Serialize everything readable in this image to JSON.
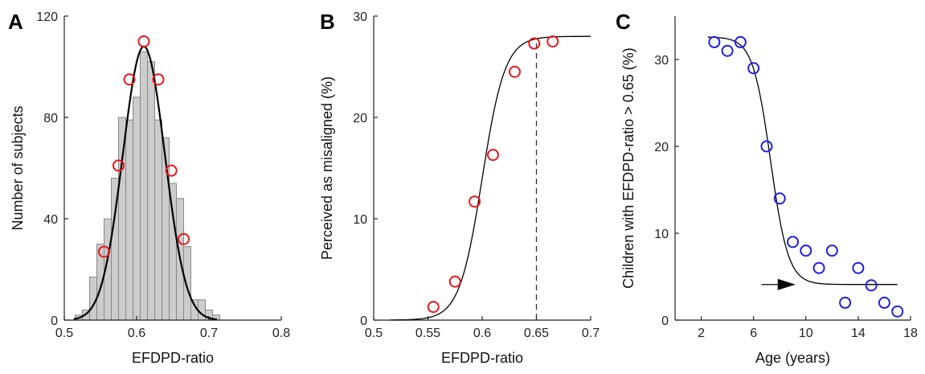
{
  "colors": {
    "axis": "#222222",
    "hist_fill": "#cccccc",
    "hist_edge": "#888888",
    "red_marker": "#e8161b",
    "blue_marker": "#1f1fe0",
    "curve": "#000000"
  },
  "chart_data": [
    {
      "panel": "A",
      "type": "bar",
      "xlabel": "EFDPD-ratio",
      "ylabel": "Number of subjects",
      "xlim": [
        0.5,
        0.8
      ],
      "ylim": [
        0,
        120
      ],
      "xticks": [
        0.5,
        0.6,
        0.7,
        0.8
      ],
      "xtick_labels": [
        "0.5",
        "0.6",
        "0.7",
        "0.8"
      ],
      "yticks": [
        0,
        40,
        80,
        120
      ],
      "ytick_labels": [
        "0",
        "40",
        "80",
        "120"
      ],
      "bin_width": 0.01,
      "bin_starts": [
        0.515,
        0.525,
        0.535,
        0.545,
        0.555,
        0.565,
        0.575,
        0.585,
        0.595,
        0.605,
        0.615,
        0.625,
        0.635,
        0.645,
        0.655,
        0.665,
        0.675,
        0.685,
        0.695,
        0.705
      ],
      "values": [
        2,
        4,
        17,
        30,
        40,
        56,
        80,
        79,
        88,
        106,
        102,
        79,
        72,
        54,
        48,
        29,
        8,
        8,
        4,
        2
      ],
      "markers": {
        "x": [
          0.555,
          0.575,
          0.59,
          0.61,
          0.63,
          0.648,
          0.665
        ],
        "y": [
          27,
          61,
          95,
          110,
          95,
          59,
          32
        ]
      },
      "fit_curve": {
        "type": "gaussian",
        "mean": 0.61,
        "sd": 0.029,
        "peak": 108
      },
      "grid": false
    },
    {
      "panel": "B",
      "type": "scatter",
      "xlabel": "EFDPD-ratio",
      "ylabel": "Perceived as misaligned (%)",
      "xlim": [
        0.5,
        0.7
      ],
      "ylim": [
        0,
        30
      ],
      "xticks": [
        0.5,
        0.55,
        0.6,
        0.65,
        0.7
      ],
      "xtick_labels": [
        "0.5",
        "0.55",
        "0.6",
        "0.65",
        "0.7"
      ],
      "yticks": [
        0,
        10,
        20,
        30
      ],
      "ytick_labels": [
        "0",
        "10",
        "20",
        "30"
      ],
      "x": [
        0.555,
        0.575,
        0.593,
        0.61,
        0.63,
        0.648,
        0.665
      ],
      "y": [
        1.3,
        3.8,
        11.7,
        16.3,
        24.5,
        27.3,
        27.5
      ],
      "fit_curve": {
        "type": "logistic",
        "min": 0,
        "max": 28,
        "midpoint": 0.6,
        "scale": 0.0105,
        "x_range": [
          0.515,
          0.7
        ]
      },
      "reference_line": {
        "x": 0.65,
        "y_top": 27.3,
        "style": "dashed"
      },
      "grid": false
    },
    {
      "panel": "C",
      "type": "scatter",
      "xlabel": "Age (years)",
      "ylabel": "Children with EFDPD-ratio > 0.65 (%)",
      "xlim": [
        0,
        18
      ],
      "ylim": [
        0,
        35
      ],
      "xticks": [
        2,
        6,
        10,
        14,
        18
      ],
      "xtick_labels": [
        "2",
        "6",
        "10",
        "14",
        "18"
      ],
      "yticks": [
        0,
        10,
        20,
        30
      ],
      "ytick_labels": [
        "0",
        "10",
        "20",
        "30"
      ],
      "x": [
        3,
        4,
        5,
        6,
        7,
        8,
        9,
        10,
        11,
        12,
        13,
        14,
        15,
        16,
        17
      ],
      "y": [
        32,
        31,
        32,
        29,
        20,
        14,
        9,
        8,
        6,
        8,
        2,
        6,
        4,
        2,
        1
      ],
      "fit_curve": {
        "type": "logistic_decreasing",
        "upper": 32.6,
        "lower": 4.1,
        "midpoint": 7.3,
        "scale": 0.68,
        "x_range": [
          2.5,
          17
        ]
      },
      "arrow": {
        "x_start": 6.6,
        "x_end": 9.2,
        "y": 4.1,
        "direction": "right"
      },
      "grid": false
    }
  ]
}
